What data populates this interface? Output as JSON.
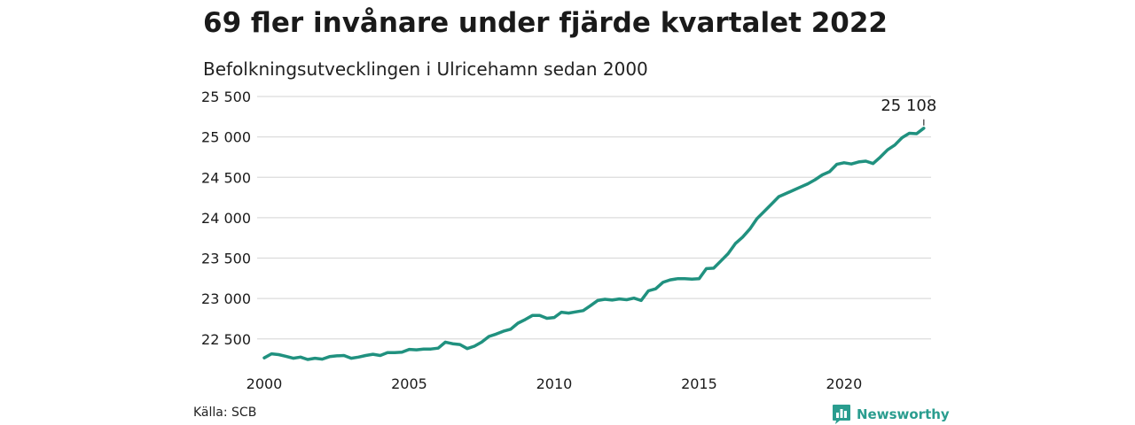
{
  "header": {
    "title": "69 fler invånare under fjärde kvartalet 2022",
    "subtitle": "Befolkningsutvecklingen i Ulricehamn sedan 2000"
  },
  "footer": {
    "source": "Källa: SCB",
    "brand": "Newsworthy",
    "brand_icon": "bar-chart-icon"
  },
  "colors": {
    "line": "#20917f",
    "grid": "#dcdcdc",
    "brand": "#2a9d8f"
  },
  "chart_data": {
    "type": "line",
    "xlim": [
      2000,
      2023
    ],
    "ylim": [
      22300,
      25500
    ],
    "x_ticks": [
      {
        "value": 2000,
        "label": "2000"
      },
      {
        "value": 2005,
        "label": "2005"
      },
      {
        "value": 2010,
        "label": "2010"
      },
      {
        "value": 2015,
        "label": "2015"
      },
      {
        "value": 2020,
        "label": "2020"
      }
    ],
    "y_ticks": [
      {
        "value": 22500,
        "label": "22 500"
      },
      {
        "value": 23000,
        "label": "23 000"
      },
      {
        "value": 23500,
        "label": "23 500"
      },
      {
        "value": 24000,
        "label": "24 000"
      },
      {
        "value": 24500,
        "label": "24 500"
      },
      {
        "value": 25000,
        "label": "25 000"
      },
      {
        "value": 25500,
        "label": "25 500"
      }
    ],
    "grid": true,
    "annotation": {
      "x": 2022.75,
      "y": 25108,
      "label": "25 108"
    },
    "x": [
      2000.0,
      2000.25,
      2000.5,
      2000.75,
      2001.0,
      2001.25,
      2001.5,
      2001.75,
      2002.0,
      2002.25,
      2002.5,
      2002.75,
      2003.0,
      2003.25,
      2003.5,
      2003.75,
      2004.0,
      2004.25,
      2004.5,
      2004.75,
      2005.0,
      2005.25,
      2005.5,
      2005.75,
      2006.0,
      2006.25,
      2006.5,
      2006.75,
      2007.0,
      2007.25,
      2007.5,
      2007.75,
      2008.0,
      2008.25,
      2008.5,
      2008.75,
      2009.0,
      2009.25,
      2009.5,
      2009.75,
      2010.0,
      2010.25,
      2010.5,
      2010.75,
      2011.0,
      2011.25,
      2011.5,
      2011.75,
      2012.0,
      2012.25,
      2012.5,
      2012.75,
      2013.0,
      2013.25,
      2013.5,
      2013.75,
      2014.0,
      2014.25,
      2014.5,
      2014.75,
      2015.0,
      2015.25,
      2015.5,
      2015.75,
      2016.0,
      2016.25,
      2016.5,
      2016.75,
      2017.0,
      2017.25,
      2017.5,
      2017.75,
      2018.0,
      2018.25,
      2018.5,
      2018.75,
      2019.0,
      2019.25,
      2019.5,
      2019.75,
      2020.0,
      2020.25,
      2020.5,
      2020.75,
      2021.0,
      2021.25,
      2021.5,
      2021.75,
      2022.0,
      2022.25,
      2022.5,
      2022.75
    ],
    "series": [
      {
        "values": [
          22265,
          22315,
          22305,
          22285,
          22260,
          22275,
          22245,
          22260,
          22250,
          22280,
          22290,
          22295,
          22260,
          22275,
          22295,
          22310,
          22295,
          22330,
          22330,
          22335,
          22370,
          22365,
          22375,
          22375,
          22385,
          22460,
          22440,
          22430,
          22380,
          22410,
          22460,
          22530,
          22560,
          22595,
          22620,
          22695,
          22740,
          22790,
          22790,
          22755,
          22765,
          22830,
          22820,
          22835,
          22850,
          22910,
          22975,
          22990,
          22980,
          22995,
          22985,
          23005,
          22975,
          23095,
          23120,
          23200,
          23230,
          23245,
          23245,
          23240,
          23245,
          23370,
          23375,
          23465,
          23555,
          23680,
          23760,
          23860,
          23990,
          24080,
          24170,
          24260,
          24300,
          24340,
          24380,
          24420,
          24470,
          24530,
          24570,
          24660,
          24680,
          24665,
          24690,
          24700,
          24670,
          24750,
          24840,
          24900,
          24990,
          25045,
          25040,
          25108
        ]
      }
    ]
  }
}
